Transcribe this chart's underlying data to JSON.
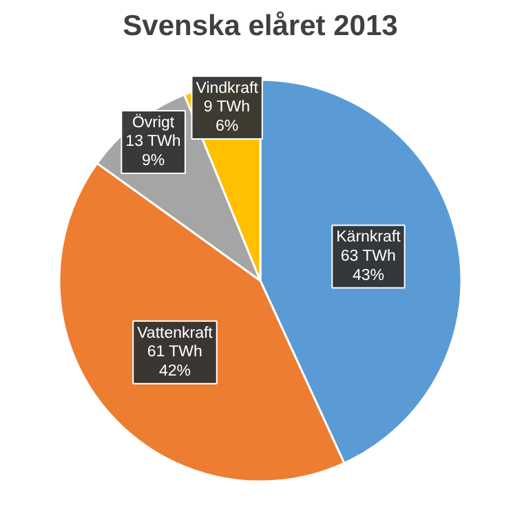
{
  "chart_data": {
    "type": "pie",
    "title": "Svenska elåret 2013",
    "categories": [
      "Kärnkraft",
      "Vattenkraft",
      "Övrigt",
      "Vindkraft"
    ],
    "values": [
      63,
      61,
      13,
      9
    ],
    "colors": [
      "#5b9bd5",
      "#ed7d31",
      "#a5a5a5",
      "#ffc000"
    ],
    "value_labels": [
      "63 TWh\n43%",
      "61 TWh\n42%",
      "13 TWh\n9%",
      "9 TWh\n6%"
    ]
  }
}
